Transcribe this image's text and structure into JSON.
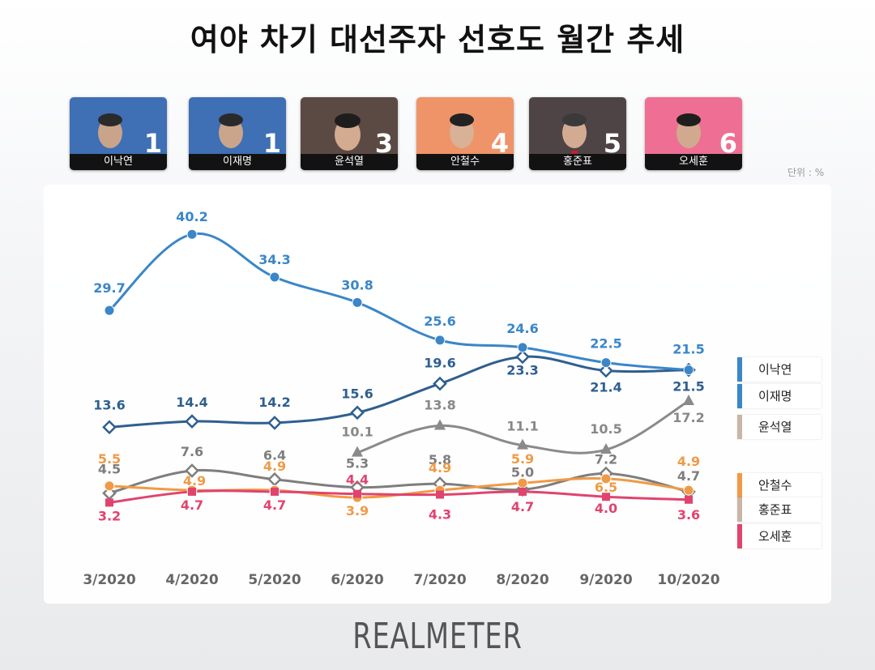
{
  "title": "여야 차기 대선주자 선호도 월간 추세",
  "unit_label": "단위 : %",
  "brand": "REALMETER",
  "candidates": [
    {
      "name": "이낙연",
      "rank": "1",
      "bg": "#3f6fb4"
    },
    {
      "name": "이재명",
      "rank": "1",
      "bg": "#3f6fb4"
    },
    {
      "name": "윤석열",
      "rank": "3",
      "bg": "#5b4a44"
    },
    {
      "name": "안철수",
      "rank": "4",
      "bg": "#ee9468"
    },
    {
      "name": "홍준표",
      "rank": "5",
      "bg": "#4e4446"
    },
    {
      "name": "오세훈",
      "rank": "6",
      "bg": "#ee6f93"
    }
  ],
  "chart_data": {
    "type": "line",
    "categories": [
      "3/2020",
      "4/2020",
      "5/2020",
      "6/2020",
      "7/2020",
      "8/2020",
      "9/2020",
      "10/2020"
    ],
    "series": [
      {
        "name": "이낙연",
        "color": "#3a86c8",
        "marker": "circle",
        "values": [
          29.7,
          40.2,
          34.3,
          30.8,
          25.6,
          24.6,
          22.5,
          21.5
        ]
      },
      {
        "name": "이재명",
        "color": "#2e5f8f",
        "marker": "diamond",
        "values": [
          13.6,
          14.4,
          14.2,
          15.6,
          19.6,
          23.3,
          21.4,
          21.5
        ]
      },
      {
        "name": "윤석열",
        "color": "#8a8a8a",
        "marker": "triangle",
        "values": [
          null,
          null,
          null,
          10.1,
          13.8,
          11.1,
          10.5,
          17.2
        ]
      },
      {
        "name": "안철수",
        "color": "#f09a46",
        "marker": "circle",
        "values": [
          5.5,
          4.9,
          4.9,
          3.9,
          4.9,
          5.9,
          6.5,
          4.9
        ]
      },
      {
        "name": "홍준표",
        "color": "#7e7e7e",
        "marker": "diamond",
        "values": [
          4.5,
          7.6,
          6.4,
          5.3,
          5.8,
          5.0,
          7.2,
          4.7
        ]
      },
      {
        "name": "오세훈",
        "color": "#e0446e",
        "marker": "square",
        "values": [
          3.2,
          4.7,
          4.7,
          4.4,
          4.3,
          4.7,
          4.0,
          3.6
        ]
      }
    ],
    "legend": [
      {
        "name": "이낙연",
        "color": "#3a86c8"
      },
      {
        "name": "이재명",
        "color": "#3a86c8"
      },
      {
        "name": "윤석열",
        "color": "#c8b6a6"
      },
      {
        "name": "안철수",
        "color": "#f09a46"
      },
      {
        "name": "홍준표",
        "color": "#c8b6a6"
      },
      {
        "name": "오세훈",
        "color": "#e0446e"
      }
    ]
  }
}
